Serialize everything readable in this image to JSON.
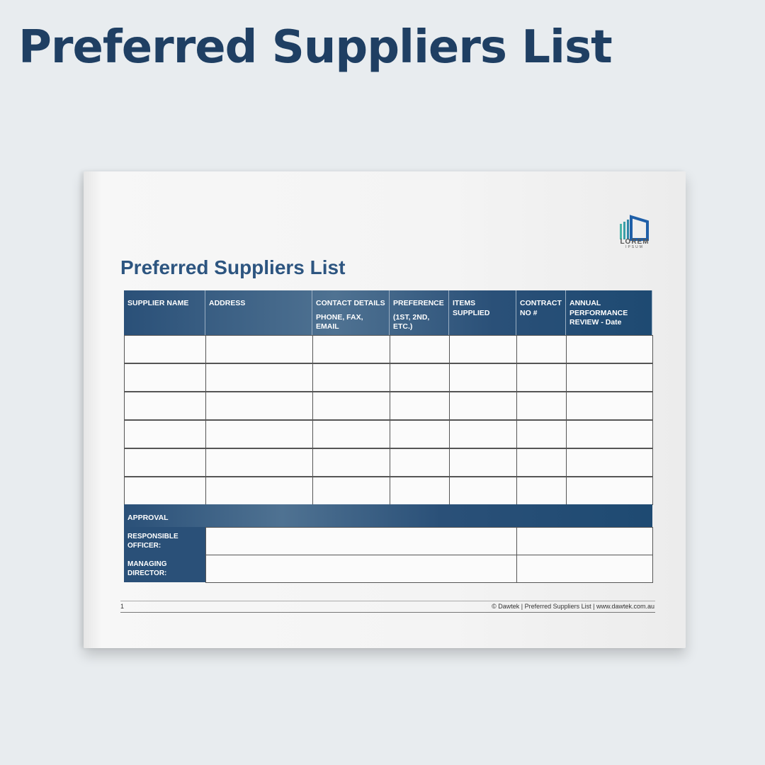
{
  "banner_title": "Preferred Suppliers List",
  "logo": {
    "text": "LOREM",
    "sub": "IPSUM",
    "colors": [
      "#4bb3a8",
      "#1f5fa8"
    ]
  },
  "document": {
    "title": "Preferred Suppliers List",
    "columns": [
      {
        "label": "SUPPLIER NAME",
        "sub": ""
      },
      {
        "label": "ADDRESS",
        "sub": ""
      },
      {
        "label": "CONTACT DETAILS",
        "sub": "PHONE, FAX, EMAIL"
      },
      {
        "label": "PREFERENCE",
        "sub": "(1ST, 2ND, ETC.)"
      },
      {
        "label": "ITEMS SUPPLIED",
        "sub": ""
      },
      {
        "label": "CONTRACT NO #",
        "sub": ""
      },
      {
        "label": "ANNUAL PERFORMANCE REVIEW - Date",
        "sub": ""
      }
    ],
    "empty_rows": 6,
    "approval": {
      "label": "APPROVAL",
      "rows": [
        "RESPONSIBLE OFFICER:",
        "MANAGING DIRECTOR:"
      ]
    },
    "footer": {
      "page": "1",
      "text": "© Dawtek | Preferred Suppliers List | www.dawtek.com.au"
    }
  },
  "colors": {
    "header": "#2a5078",
    "title": "#1f3f63"
  }
}
